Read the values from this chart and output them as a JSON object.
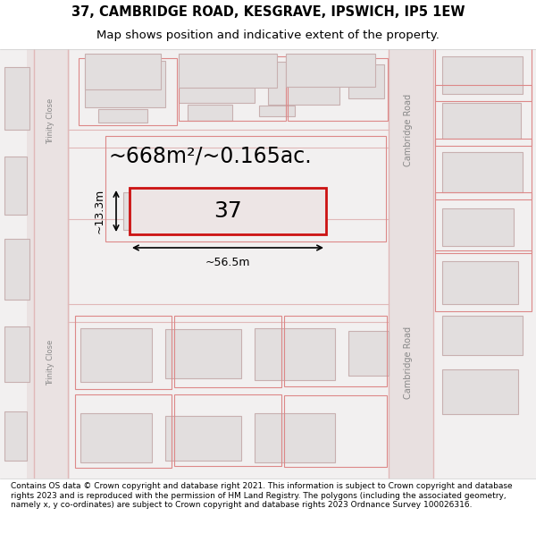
{
  "title_line1": "37, CAMBRIDGE ROAD, KESGRAVE, IPSWICH, IP5 1EW",
  "title_line2": "Map shows position and indicative extent of the property.",
  "footer_text": "Contains OS data © Crown copyright and database right 2021. This information is subject to Crown copyright and database rights 2023 and is reproduced with the permission of HM Land Registry. The polygons (including the associated geometry, namely x, y co-ordinates) are subject to Crown copyright and database rights 2023 Ordnance Survey 100026316.",
  "background_color": "#f5f5f5",
  "map_bg": "#f0eeee",
  "road_color_light": "#e8c8c8",
  "road_color_red": "#cc3333",
  "building_fill": "#e0dcdc",
  "building_stroke": "#c8b8b8",
  "highlight_fill": "#e8d8d8",
  "highlight_stroke": "#dd2222",
  "area_label": "~668m²/~0.165ac.",
  "width_label": "~56.5m",
  "height_label": "~13.3m",
  "property_number": "37",
  "cambridge_road_label": "Cambridge Road",
  "trinity_close_label": "Trinity Close"
}
